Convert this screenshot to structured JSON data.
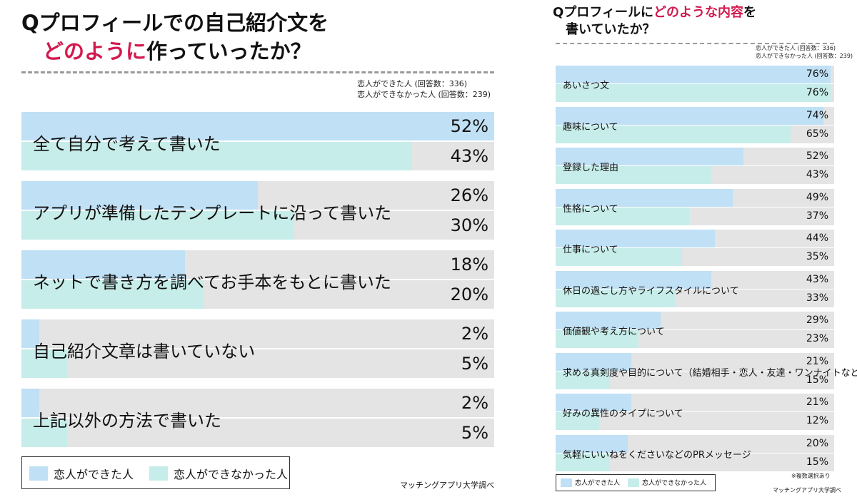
{
  "left": {
    "title_line1": "Qプロフィールでの自己紹介文を",
    "title_line2_accent": "どのように",
    "title_line2_rest": "作っていったか？",
    "respondents": [
      "恋人ができた人 (回答数：336)",
      "恋人ができなかった人 (回答数：239)"
    ],
    "legend": [
      "恋人ができた人",
      "恋人ができなかった人"
    ],
    "source": "マッチングアプリ大学調べ"
  },
  "right": {
    "title_line1_a": "Qプロフィールに",
    "title_line1_accent": "どのような内容",
    "title_line1_b": "を",
    "title_line2": "書いていたか？",
    "respondents": [
      "恋人ができた人 (回答数：336)",
      "恋人ができなかった人 (回答数：239)"
    ],
    "legend": [
      "恋人ができた人",
      "恋人ができなかった人"
    ],
    "footnote": "※複数選択あり",
    "source": "マッチングアプリ大学調べ"
  },
  "colors": {
    "accent": "#d2194e",
    "series_0": "#bfe0f5",
    "series_1": "#c6ede9",
    "track": "#e4e4e4"
  },
  "chart_data": [
    {
      "type": "bar",
      "title": "Qプロフィールでの自己紹介文をどのように作っていったか？",
      "unit": "%",
      "categories": [
        "全て自分で考えて書いた",
        "アプリが準備したテンプレートに沿って書いた",
        "ネットで書き方を調べてお手本をもとに書いた",
        "自己紹介文章は書いていない",
        "上記以外の方法で書いた"
      ],
      "series": [
        {
          "name": "恋人ができた人",
          "values": [
            52,
            26,
            18,
            2,
            2
          ]
        },
        {
          "name": "恋人ができなかった人",
          "values": [
            43,
            30,
            20,
            5,
            5
          ]
        }
      ],
      "xlim": [
        0,
        52
      ]
    },
    {
      "type": "bar",
      "title": "Qプロフィールにどのような内容を書いていたか？",
      "unit": "%",
      "categories": [
        "あいさつ文",
        "趣味について",
        "登録した理由",
        "性格について",
        "仕事について",
        "休日の過ごし方やライフスタイルについて",
        "価値観や考え方について",
        "求める真剣度や目的について（結婚相手・恋人・友達・ワンナイトなど）",
        "好みの異性のタイプについて",
        "気軽にいいねをくださいなどのPRメッセージ"
      ],
      "series": [
        {
          "name": "恋人ができた人",
          "values": [
            76,
            74,
            52,
            49,
            44,
            43,
            29,
            21,
            21,
            20
          ]
        },
        {
          "name": "恋人ができなかった人",
          "values": [
            76,
            65,
            43,
            37,
            35,
            33,
            23,
            15,
            12,
            15
          ]
        }
      ],
      "xlim": [
        0,
        77
      ]
    }
  ]
}
